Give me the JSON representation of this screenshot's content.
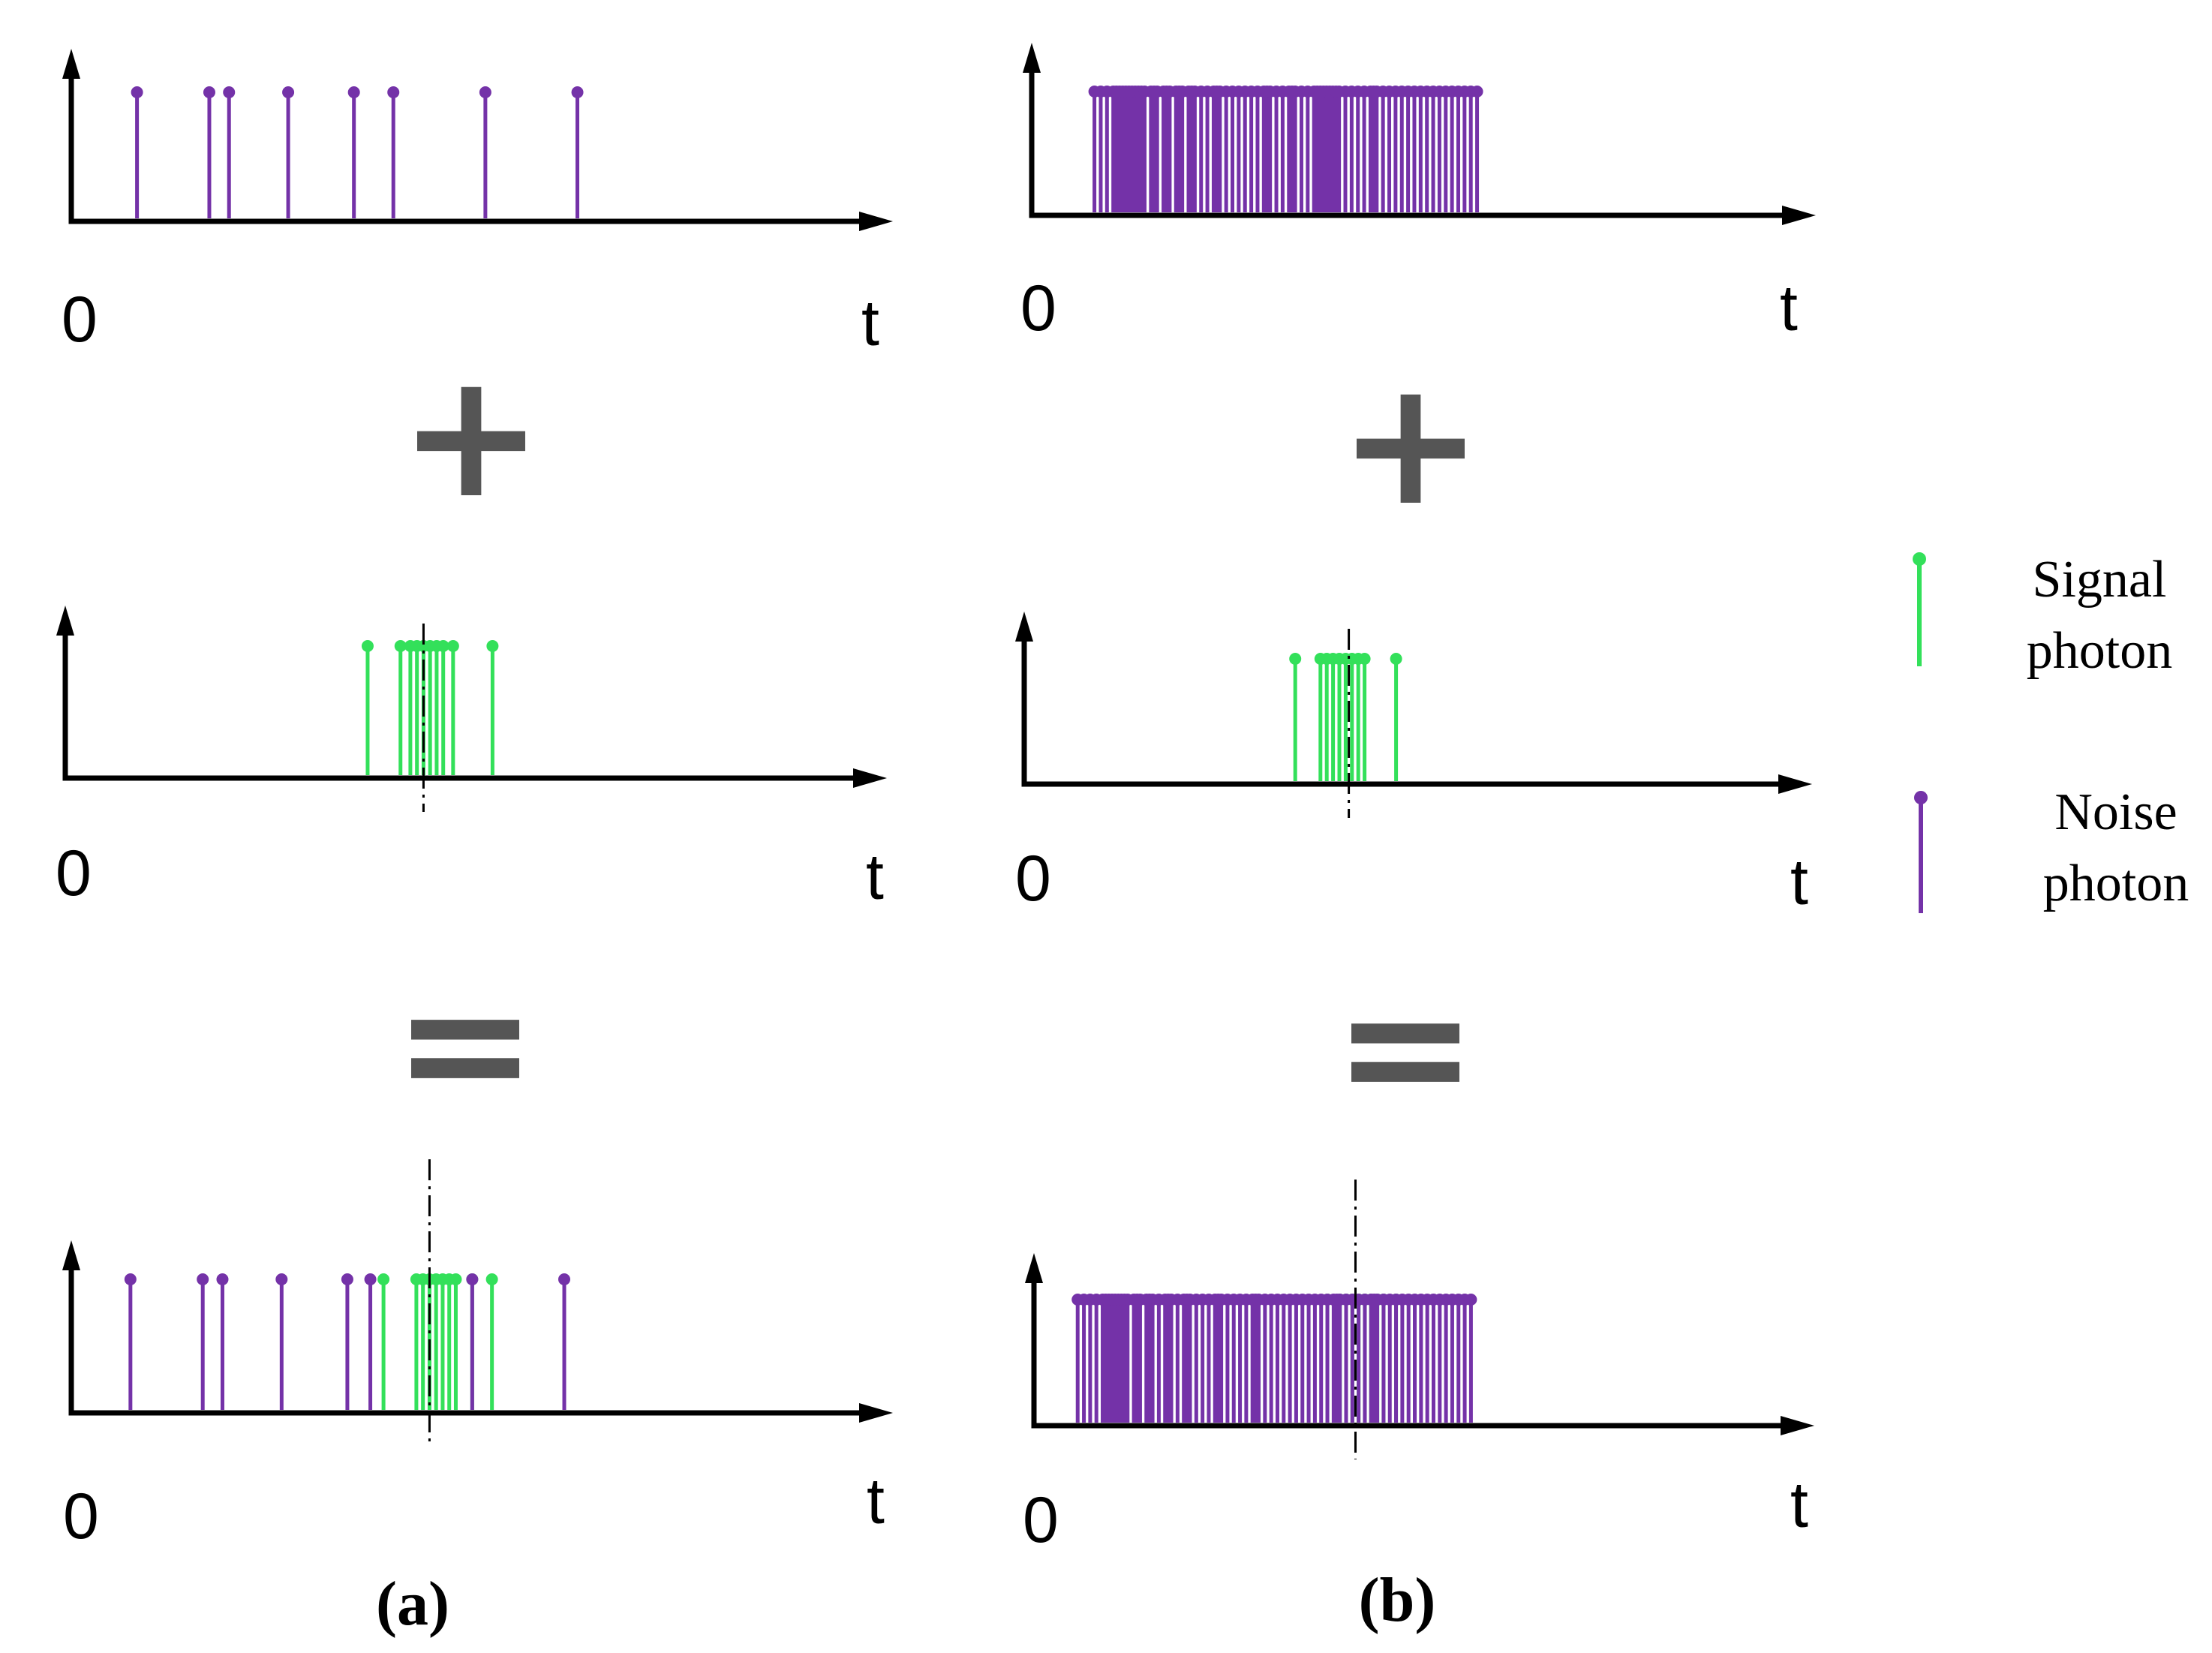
{
  "axis_labels": {
    "origin": "0",
    "time": "t"
  },
  "operators": {
    "plus": "+",
    "equals": "="
  },
  "captions": {
    "a": "(a)",
    "b": "(b)"
  },
  "legend": {
    "signal_line1": "Signal",
    "signal_line2": "photon",
    "noise_line1": "Noise",
    "noise_line2": "photon"
  },
  "colors": {
    "signal": "#33e05a",
    "noise": "#7432a8",
    "axis": "#000000",
    "operator": "#555555"
  },
  "panels": {
    "a": {
      "noise_times": [
        0.1,
        0.21,
        0.24,
        0.33,
        0.43,
        0.49,
        0.63,
        0.77
      ],
      "signal_times": [
        0.46,
        0.51,
        0.525,
        0.535,
        0.545,
        0.555,
        0.565,
        0.575,
        0.59,
        0.65
      ],
      "signal_center": 0.545,
      "combined_noise_times": [
        0.09,
        0.2,
        0.23,
        0.32,
        0.42,
        0.455,
        0.61,
        0.75
      ],
      "combined_signal_times": [
        0.475,
        0.525,
        0.535,
        0.545,
        0.555,
        0.565,
        0.575,
        0.585,
        0.61,
        0.64
      ]
    },
    "b": {
      "noise_times": [
        0.1,
        0.11,
        0.12,
        0.13,
        0.135,
        0.14,
        0.145,
        0.15,
        0.155,
        0.16,
        0.165,
        0.17,
        0.175,
        0.18,
        0.19,
        0.195,
        0.2,
        0.21,
        0.215,
        0.22,
        0.23,
        0.235,
        0.24,
        0.25,
        0.255,
        0.26,
        0.27,
        0.28,
        0.29,
        0.295,
        0.3,
        0.31,
        0.32,
        0.33,
        0.34,
        0.35,
        0.36,
        0.37,
        0.375,
        0.38,
        0.39,
        0.4,
        0.41,
        0.415,
        0.42,
        0.43,
        0.44,
        0.45,
        0.455,
        0.46,
        0.465,
        0.47,
        0.475,
        0.48,
        0.485,
        0.49,
        0.5,
        0.51,
        0.52,
        0.53,
        0.54,
        0.545,
        0.55,
        0.56,
        0.57,
        0.58,
        0.59,
        0.6,
        0.61,
        0.62,
        0.63,
        0.64,
        0.65,
        0.66,
        0.67,
        0.68,
        0.69,
        0.7,
        0.71
      ],
      "signal_times": [
        0.43,
        0.47,
        0.48,
        0.49,
        0.5,
        0.51,
        0.52,
        0.53,
        0.54,
        0.59
      ],
      "signal_center": 0.515,
      "combined_noise_times": [
        0.07,
        0.08,
        0.09,
        0.1,
        0.11,
        0.115,
        0.12,
        0.125,
        0.13,
        0.135,
        0.14,
        0.145,
        0.15,
        0.16,
        0.165,
        0.17,
        0.18,
        0.185,
        0.19,
        0.2,
        0.21,
        0.215,
        0.22,
        0.23,
        0.24,
        0.245,
        0.25,
        0.26,
        0.27,
        0.28,
        0.29,
        0.295,
        0.3,
        0.31,
        0.32,
        0.33,
        0.34,
        0.35,
        0.355,
        0.36,
        0.37,
        0.38,
        0.39,
        0.4,
        0.41,
        0.42,
        0.43,
        0.44,
        0.45,
        0.46,
        0.47,
        0.48,
        0.485,
        0.49,
        0.5,
        0.51,
        0.52,
        0.53,
        0.54,
        0.545,
        0.55,
        0.56,
        0.57,
        0.58,
        0.59,
        0.6,
        0.61,
        0.62,
        0.63,
        0.64,
        0.65,
        0.66,
        0.67,
        0.68,
        0.69,
        0.7
      ],
      "combined_signal_times": [
        0.47,
        0.49,
        0.5,
        0.51,
        0.52,
        0.53,
        0.54,
        0.55,
        0.56,
        0.58
      ]
    }
  }
}
